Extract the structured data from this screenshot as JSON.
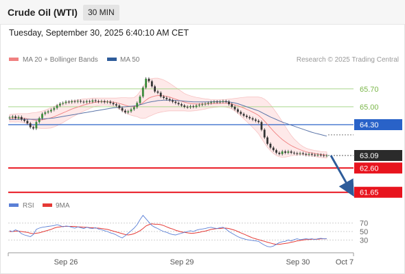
{
  "header": {
    "title": "Crude Oil (WTI)",
    "interval": "30 MIN",
    "datetime": "Tuesday, September 30, 2025 6:40:10 AM CET"
  },
  "chart_data": [
    {
      "type": "candlestick",
      "legend_position": "top-left",
      "grid": false,
      "legend": [
        {
          "label": "MA 20 + Bollinger Bands",
          "color": "#f08080"
        },
        {
          "label": "MA 50",
          "color": "#2e5c9a"
        }
      ],
      "credit": "Research © 2025 Trading Central",
      "ylim": [
        61.4,
        66.5
      ],
      "x_ticks": [
        "Sep 26",
        "Sep 29",
        "Sep 30",
        "Oct 7"
      ],
      "levels": [
        {
          "label": "65.70",
          "value": 65.7,
          "kind": "resistance"
        },
        {
          "label": "65.00",
          "value": 65.0,
          "kind": "resistance"
        },
        {
          "label": "64.30",
          "value": 64.3,
          "kind": "pivot"
        },
        {
          "label": "63.09",
          "value": 63.09,
          "kind": "last"
        },
        {
          "label": "62.60",
          "value": 62.6,
          "kind": "support"
        },
        {
          "label": "61.65",
          "value": 61.65,
          "kind": "support"
        }
      ],
      "close": [
        64.58,
        64.62,
        64.55,
        64.6,
        64.5,
        64.45,
        64.35,
        64.2,
        64.15,
        64.4,
        64.55,
        64.72,
        64.78,
        64.82,
        64.88,
        64.95,
        65.05,
        65.12,
        65.15,
        65.2,
        65.18,
        65.22,
        65.2,
        65.23,
        65.2,
        65.18,
        65.22,
        65.2,
        65.25,
        65.22,
        65.2,
        65.22,
        65.18,
        65.2,
        65.15,
        65.1,
        65.05,
        64.95,
        64.85,
        64.78,
        64.82,
        64.9,
        64.98,
        65.15,
        65.4,
        65.75,
        66.1,
        66.0,
        65.8,
        65.6,
        65.55,
        65.4,
        65.35,
        65.3,
        65.25,
        65.2,
        65.15,
        65.1,
        65.05,
        65.0,
        64.98,
        65.02,
        65.0,
        65.05,
        65.08,
        65.1,
        65.12,
        65.15,
        65.18,
        65.2,
        65.18,
        65.2,
        65.22,
        65.2,
        65.1,
        65.0,
        64.9,
        64.8,
        64.72,
        64.65,
        64.6,
        64.55,
        64.5,
        64.45,
        64.4,
        64.1,
        63.8,
        63.55,
        63.4,
        63.3,
        63.2,
        63.15,
        63.25,
        63.2,
        63.25,
        63.2,
        63.18,
        63.15,
        63.18,
        63.15,
        63.12,
        63.15,
        63.12,
        63.1,
        63.12,
        63.1,
        63.08,
        63.09
      ],
      "ma20": [
        64.55,
        64.56,
        64.56,
        64.57,
        64.56,
        64.55,
        64.53,
        64.51,
        64.49,
        64.48,
        64.48,
        64.49,
        64.51,
        64.54,
        64.57,
        64.61,
        64.66,
        64.71,
        64.76,
        64.81,
        64.86,
        64.91,
        64.95,
        64.99,
        65.03,
        65.07,
        65.1,
        65.13,
        65.16,
        65.18,
        65.19,
        65.2,
        65.2,
        65.2,
        65.19,
        65.18,
        65.16,
        65.13,
        65.1,
        65.06,
        65.03,
        65.01,
        65.0,
        65.03,
        65.08,
        65.16,
        65.26,
        65.34,
        65.39,
        65.42,
        65.44,
        65.44,
        65.43,
        65.41,
        65.38,
        65.34,
        65.3,
        65.26,
        65.22,
        65.18,
        65.15,
        65.13,
        65.12,
        65.11,
        65.11,
        65.11,
        65.11,
        65.12,
        65.12,
        65.13,
        65.13,
        65.14,
        65.14,
        65.14,
        65.13,
        65.11,
        65.08,
        65.04,
        65.0,
        64.95,
        64.9,
        64.85,
        64.79,
        64.73,
        64.66,
        64.56,
        64.44,
        64.31,
        64.18,
        64.05,
        63.93,
        63.82,
        63.72,
        63.63,
        63.55,
        63.48,
        63.42,
        63.37,
        63.32,
        63.28,
        63.24,
        63.21,
        63.19,
        63.17,
        63.15,
        63.13,
        63.12,
        63.11
      ],
      "bb_width": [
        0.15,
        0.15,
        0.16,
        0.16,
        0.17,
        0.18,
        0.2,
        0.24,
        0.28,
        0.3,
        0.32,
        0.34,
        0.36,
        0.38,
        0.4,
        0.4,
        0.4,
        0.39,
        0.38,
        0.36,
        0.34,
        0.32,
        0.3,
        0.28,
        0.26,
        0.24,
        0.22,
        0.2,
        0.18,
        0.16,
        0.15,
        0.14,
        0.14,
        0.14,
        0.15,
        0.16,
        0.18,
        0.22,
        0.26,
        0.3,
        0.32,
        0.34,
        0.36,
        0.42,
        0.52,
        0.62,
        0.7,
        0.72,
        0.72,
        0.7,
        0.68,
        0.65,
        0.62,
        0.58,
        0.54,
        0.5,
        0.46,
        0.42,
        0.38,
        0.34,
        0.32,
        0.3,
        0.28,
        0.26,
        0.24,
        0.22,
        0.2,
        0.18,
        0.16,
        0.15,
        0.14,
        0.14,
        0.14,
        0.15,
        0.17,
        0.2,
        0.25,
        0.3,
        0.36,
        0.42,
        0.48,
        0.54,
        0.6,
        0.66,
        0.72,
        0.8,
        0.86,
        0.9,
        0.9,
        0.88,
        0.84,
        0.78,
        0.7,
        0.6,
        0.5,
        0.4,
        0.32,
        0.26,
        0.2,
        0.16,
        0.14,
        0.13,
        0.12,
        0.12,
        0.12,
        0.12,
        0.12,
        0.12
      ],
      "ma50": [
        64.5,
        64.5,
        64.5,
        64.51,
        64.51,
        64.51,
        64.51,
        64.51,
        64.51,
        64.51,
        64.52,
        64.52,
        64.53,
        64.54,
        64.55,
        64.56,
        64.58,
        64.6,
        64.62,
        64.64,
        64.66,
        64.68,
        64.7,
        64.72,
        64.74,
        64.76,
        64.78,
        64.8,
        64.82,
        64.84,
        64.86,
        64.88,
        64.9,
        64.92,
        64.94,
        64.96,
        64.97,
        64.98,
        64.99,
        65.0,
        65.01,
        65.02,
        65.03,
        65.05,
        65.08,
        65.11,
        65.15,
        65.18,
        65.2,
        65.22,
        65.24,
        65.25,
        65.26,
        65.26,
        65.26,
        65.26,
        65.25,
        65.24,
        65.23,
        65.22,
        65.21,
        65.2,
        65.19,
        65.19,
        65.19,
        65.19,
        65.19,
        65.19,
        65.19,
        65.2,
        65.2,
        65.2,
        65.2,
        65.2,
        65.19,
        65.17,
        65.15,
        65.12,
        65.08,
        65.04,
        65.0,
        64.96,
        64.92,
        64.88,
        64.84,
        64.78,
        64.72,
        64.66,
        64.6,
        64.55,
        64.5,
        64.45,
        64.4,
        64.36,
        64.32,
        64.28,
        64.24,
        64.2,
        64.16,
        64.12,
        64.08,
        64.04,
        64.0,
        63.97,
        63.94,
        63.91,
        63.88,
        63.85
      ]
    },
    {
      "type": "line",
      "legend_position": "top-left",
      "grid": false,
      "legend": [
        {
          "label": "RSI",
          "color": "#5a7fd6"
        },
        {
          "label": "9MA",
          "color": "#e53935"
        }
      ],
      "ylim": [
        5,
        95
      ],
      "y_ticks": [
        70,
        50,
        30
      ],
      "rsi": [
        52,
        50,
        54,
        51,
        45,
        42,
        40,
        38,
        43,
        55,
        58,
        60,
        61,
        62,
        63,
        64,
        66,
        64,
        61,
        63,
        62,
        60,
        58,
        61,
        59,
        57,
        60,
        58,
        57,
        59,
        56,
        54,
        52,
        50,
        47,
        45,
        42,
        38,
        35,
        40,
        46,
        52,
        58,
        66,
        78,
        88,
        80,
        72,
        64,
        60,
        57,
        53,
        50,
        48,
        45,
        43,
        42,
        44,
        46,
        48,
        50,
        52,
        50,
        53,
        55,
        56,
        57,
        59,
        60,
        58,
        57,
        59,
        60,
        56,
        50,
        46,
        42,
        38,
        35,
        33,
        31,
        30,
        29,
        28,
        27,
        22,
        18,
        15,
        14,
        16,
        20,
        24,
        26,
        27,
        30,
        28,
        31,
        33,
        31,
        32,
        33,
        32,
        33,
        31,
        33,
        34,
        33,
        33
      ],
      "ma9": [
        50,
        50,
        51,
        51,
        50,
        49,
        48,
        46,
        45,
        46,
        47,
        49,
        51,
        53,
        55,
        58,
        60,
        61,
        62,
        62,
        62,
        62,
        62,
        61,
        61,
        60,
        60,
        59,
        59,
        58,
        58,
        57,
        56,
        55,
        53,
        51,
        49,
        47,
        45,
        43,
        42,
        43,
        45,
        48,
        52,
        57,
        63,
        66,
        68,
        67,
        67,
        66,
        64,
        61,
        58,
        56,
        53,
        51,
        49,
        48,
        47,
        46,
        46,
        47,
        48,
        50,
        51,
        53,
        55,
        56,
        57,
        57,
        58,
        58,
        57,
        55,
        53,
        50,
        47,
        44,
        41,
        38,
        35,
        33,
        31,
        29,
        27,
        25,
        23,
        21,
        20,
        20,
        21,
        22,
        23,
        25,
        26,
        28,
        29,
        30,
        31,
        31,
        32,
        32,
        32,
        33,
        33,
        33
      ]
    }
  ]
}
